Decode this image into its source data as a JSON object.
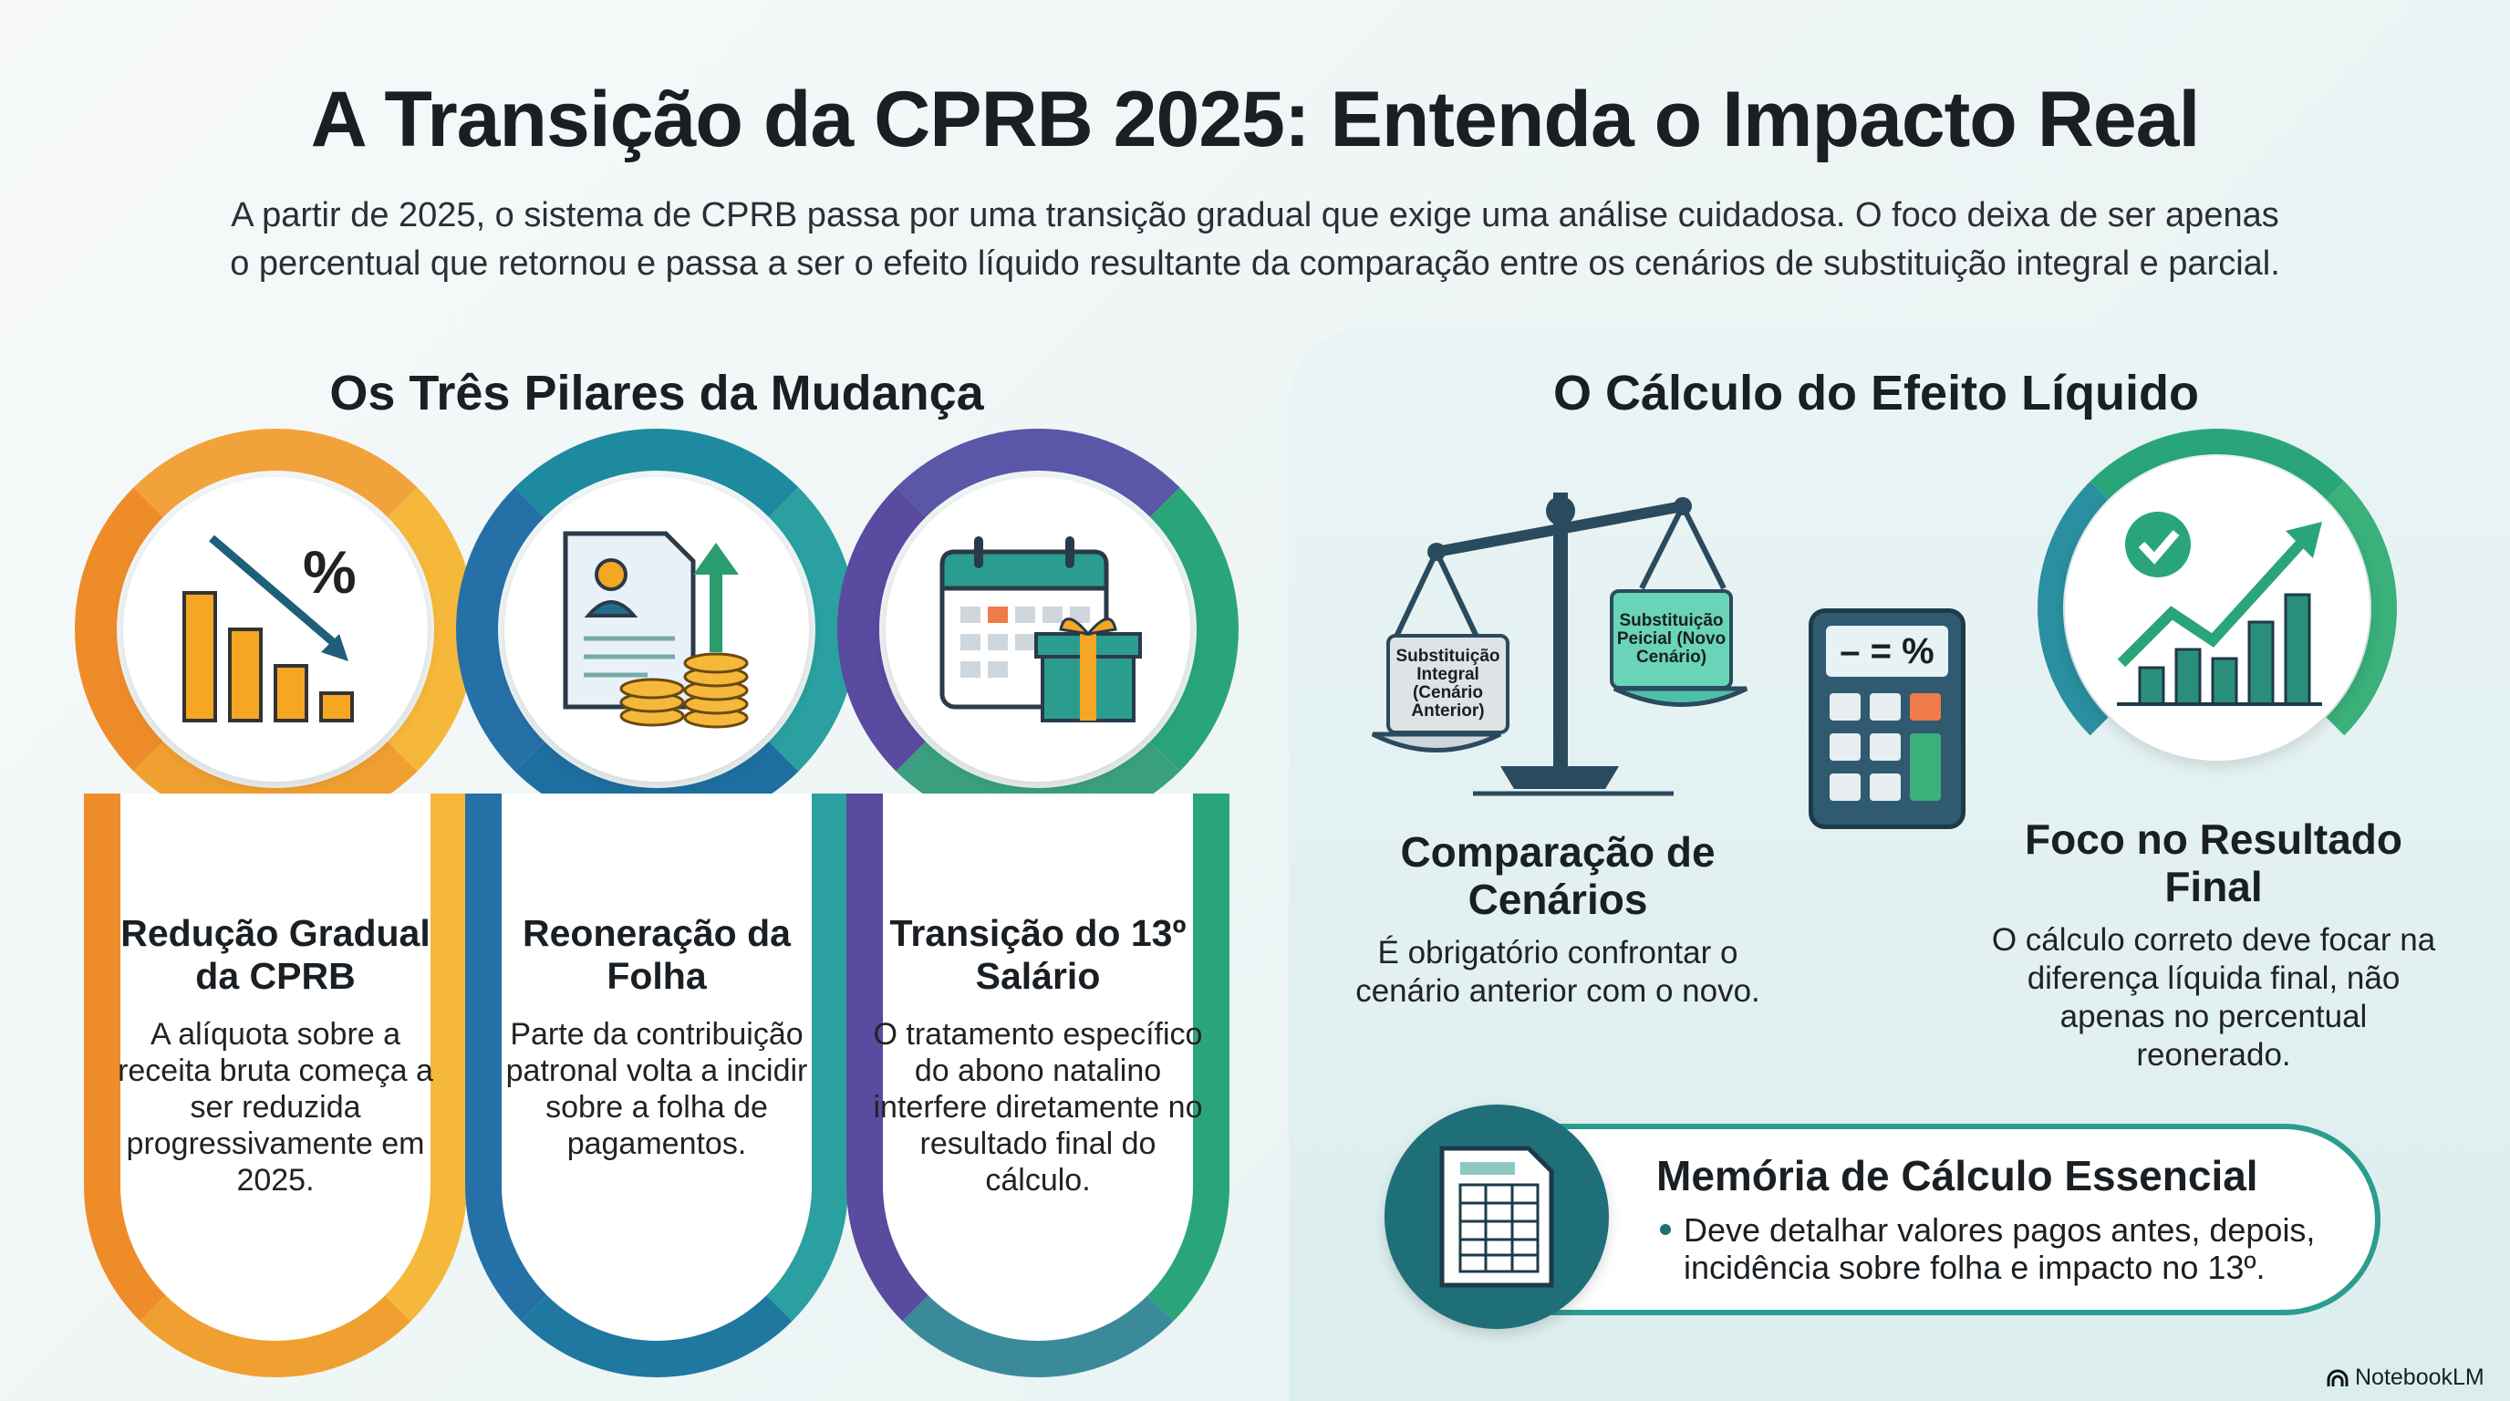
{
  "title": "A Transição da CPRB 2025: Entenda o Impacto Real",
  "subtitle": [
    "A partir de 2025, o sistema de CPRB passa por uma transição gradual que exige uma análise cuidadosa. O foco deixa de ser apenas",
    "o percentual que retornou e passa a ser o efeito líquido resultante da comparação entre os cenários de substituição integral e parcial."
  ],
  "left_section": {
    "title": "Os Três Pilares da Mudança",
    "pillars": [
      {
        "heading": "Redução Gradual da CPRB",
        "body": "A alíquota sobre a receita bruta começa a ser reduzida progressivamente em 2025.",
        "icon": "bar-chart-down-percent-icon",
        "color": "#f0a030"
      },
      {
        "heading": "Reoneração da Folha",
        "body": "Parte da contribuição patronal volta a incidir sobre a folha de pagamentos.",
        "icon": "payroll-document-coins-icon",
        "color": "#1e8aa0"
      },
      {
        "heading": "Transição do 13º Salário",
        "body": "O tratamento específico do abono natalino interfere diretamente no resultado final do cálculo.",
        "icon": "calendar-gift-icon",
        "color": "#5a56a8"
      }
    ]
  },
  "right_section": {
    "title": "O Cálculo do Efeito Líquido",
    "scale": {
      "left_pan": "Substituição Integral (Cenário Anterior)",
      "right_pan": "Substituição Peicial (Novo Cenário)"
    },
    "calculator_display": "– = %",
    "comparison": {
      "heading": "Comparação de Cenários",
      "body": "É obrigatório confrontar o cenário anterior com o novo."
    },
    "focus": {
      "heading": "Foco no Resultado Final",
      "body": "O cálculo correto deve focar na diferença líquida final, não apenas no percentual reonerado."
    },
    "memo": {
      "heading": "Memória de Cálculo Essencial",
      "bullet": "Deve detalhar valores pagos antes, depois, incidência sobre folha e impacto no 13º."
    }
  },
  "brand": "NotebookLM"
}
